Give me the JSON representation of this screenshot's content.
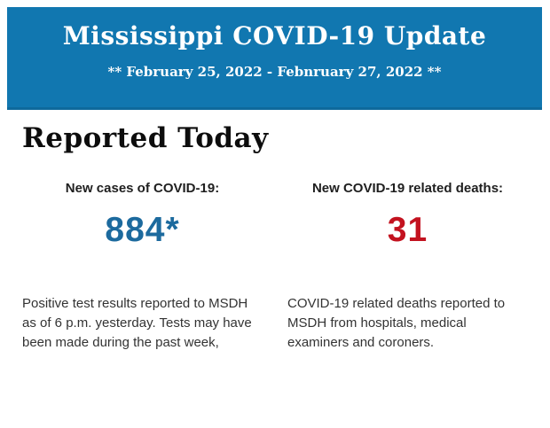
{
  "banner": {
    "title": "Mississippi COVID-19 Update",
    "subtitle": "** February 25, 2022 - Febnruary 27, 2022 **",
    "background_color": "#1177b0",
    "text_color": "#ffffff"
  },
  "report": {
    "heading": "Reported Today",
    "stats": [
      {
        "label": "New cases of COVID-19:",
        "value": "884*",
        "value_color": "#1c6a9e",
        "description": "Positive test results reported to MSDH as of 6 p.m. yesterday. Tests may have been made during the past week,"
      },
      {
        "label": "New COVID-19 related deaths:",
        "value": "31",
        "value_color": "#c3121f",
        "description": "COVID-19 related deaths reported to MSDH from hospitals, medical examiners and coroners."
      }
    ]
  }
}
